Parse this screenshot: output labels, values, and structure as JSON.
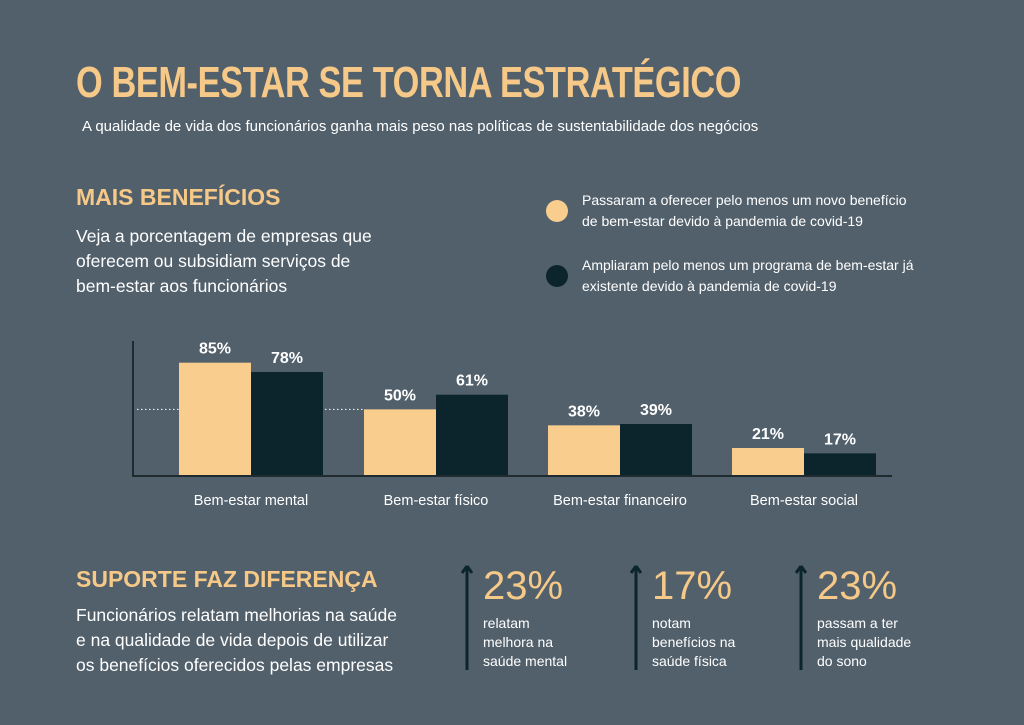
{
  "header": {
    "title": "O BEM-ESTAR SE TORNA ESTRATÉGICO",
    "subtitle": "A qualidade de vida dos funcionários ganha mais peso nas políticas de sustentabilidade dos negócios"
  },
  "benefits": {
    "heading": "MAIS BENEFÍCIOS",
    "description_lines": [
      "Veja a porcentagem de empresas que",
      "oferecem ou subsidiam serviços de",
      "bem-estar aos funcionários"
    ]
  },
  "legend": {
    "items": [
      {
        "lines": [
          "Passaram a oferecer pelo menos um novo benefício",
          "de bem-estar devido à pandemia de covid-19"
        ],
        "color": "#f9cd8d"
      },
      {
        "lines": [
          "Ampliaram pelo menos um programa de bem-estar já",
          "existente devido à pandemia de covid-19"
        ],
        "color": "#0c252c"
      }
    ]
  },
  "chart_data": {
    "type": "bar",
    "categories": [
      "Bem-estar mental",
      "Bem-estar físico",
      "Bem-estar financeiro",
      "Bem-estar social"
    ],
    "series": [
      {
        "name": "Passaram a oferecer pelo menos um novo benefício de bem-estar devido à pandemia de covid-19",
        "values": [
          85,
          50,
          38,
          21
        ],
        "labels": [
          "85%",
          "50%",
          "38%",
          "21%"
        ],
        "color": "#f9cd8d"
      },
      {
        "name": "Ampliaram pelo menos um programa de bem-estar já existente devido à pandemia de covid-19",
        "values": [
          78,
          61,
          39,
          17
        ],
        "labels": [
          "78%",
          "61%",
          "39%",
          "17%"
        ],
        "color": "#0c252c"
      }
    ],
    "ylim": [
      0,
      100
    ],
    "reference_line": 50,
    "grid": false,
    "legend_position": "top-right"
  },
  "support": {
    "heading": "SUPORTE FAZ DIFERENÇA",
    "description_lines": [
      "Funcionários relatam melhorias na saúde",
      "e na qualidade de vida depois de utilizar",
      "os benefícios oferecidos pelas empresas"
    ],
    "stats": [
      {
        "value": "23%",
        "label_lines": [
          "relatam",
          "melhora na",
          "saúde mental"
        ]
      },
      {
        "value": "17%",
        "label_lines": [
          "notam",
          "benefícios na",
          "saúde física"
        ]
      },
      {
        "value": "23%",
        "label_lines": [
          "passam a ter",
          "mais qualidade",
          "do sono"
        ]
      }
    ]
  }
}
